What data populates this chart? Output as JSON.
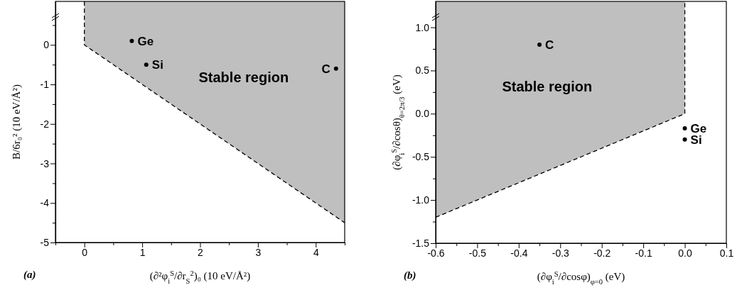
{
  "chart_data": [
    {
      "type": "scatter",
      "xlabel": "(∂²φ$_{i}$$^{S}$/∂r$_{S}$$^{2}$)₀ (10 eV/Å²)",
      "ylabel": "B/6r₀² (10 eV/Å²)",
      "xlim": [
        -0.5,
        4.5
      ],
      "ylim": [
        -5,
        1.1
      ],
      "xticks": [
        {
          "value": -0.5,
          "label": null
        },
        0,
        {
          "value": 0.5,
          "label": null
        },
        1,
        {
          "value": 1.5,
          "label": null
        },
        2,
        {
          "value": 2.5,
          "label": null
        },
        3,
        {
          "value": 3.5,
          "label": null
        },
        4,
        {
          "value": 4.5,
          "label": null
        }
      ],
      "yticks": [
        -5,
        {
          "value": -4.5,
          "label": null
        },
        -4,
        {
          "value": -3.5,
          "label": null
        },
        -3,
        {
          "value": -2.5,
          "label": null
        },
        -2,
        {
          "value": -1.5,
          "label": null
        },
        -1,
        {
          "value": -0.5,
          "label": null
        },
        0,
        {
          "value": 0.5,
          "label": null
        }
      ],
      "grid": false,
      "series": [
        {
          "type": "line",
          "x": [
            0,
            0,
            4.5
          ],
          "values": [
            1.1,
            0,
            -4.5
          ],
          "lower": [
            1.1,
            0,
            -4.5
          ],
          "upper": [
            1.1,
            1.1,
            1.1
          ],
          "color": "#000000",
          "line_style": "dashed",
          "marker": "none"
        },
        {
          "x": [
            0.82,
            1.07,
            4.35
          ],
          "values": [
            0.1,
            -0.5,
            -0.6
          ],
          "color": "#000000",
          "marker": "circle"
        }
      ],
      "annotations": [
        {
          "text": "Ge",
          "x": 0.82,
          "y": 0.1
        },
        {
          "text": "Si",
          "x": 1.07,
          "y": -0.5
        },
        {
          "text": "C",
          "x": 4.35,
          "y": -0.6
        },
        "Stable region",
        "(a)"
      ]
    },
    {
      "type": "scatter",
      "xlabel": "(∂φ$_{i}$$^{S}$/∂cosφ)$_{φ=0}$ (eV)",
      "ylabel": "(∂φ$_{i}$$^{S}$/∂cosθ)$_{θ=2π/3}$ (eV)",
      "xlim": [
        -0.6,
        0.1
      ],
      "ylim": [
        -1.5,
        1.3
      ],
      "xticks": [
        -0.6,
        {
          "value": -0.55,
          "label": null
        },
        -0.5,
        {
          "value": -0.45,
          "label": null
        },
        -0.4,
        {
          "value": -0.35,
          "label": null
        },
        -0.3,
        {
          "value": -0.25,
          "label": null
        },
        -0.2,
        {
          "value": -0.15,
          "label": null
        },
        -0.1,
        {
          "value": -0.05,
          "label": null
        },
        {
          "value": 0,
          "label": "0.0"
        },
        {
          "value": 0.05,
          "label": null
        },
        0.1
      ],
      "yticks": [
        -1.5,
        {
          "value": -1.25,
          "label": null
        },
        {
          "value": -1,
          "label": "-1.0"
        },
        {
          "value": -0.75,
          "label": null
        },
        -0.5,
        {
          "value": -0.25,
          "label": null
        },
        {
          "value": 0,
          "label": "0.0"
        },
        {
          "value": 0.25,
          "label": null
        },
        0.5,
        {
          "value": 0.75,
          "label": null
        },
        {
          "value": 1,
          "label": "1.0"
        }
      ],
      "grid": false,
      "series": [
        {
          "type": "line",
          "x": [
            -0.6,
            0,
            0
          ],
          "values": [
            -1.2,
            0,
            1.3
          ],
          "lower": [
            -1.2,
            0,
            1.3
          ],
          "upper": [
            1.3,
            1.3,
            1.3
          ],
          "color": "#000000",
          "line_style": "dashed",
          "marker": "none"
        },
        {
          "x": [
            -0.35,
            0,
            0
          ],
          "values": [
            0.8,
            -0.17,
            -0.3
          ],
          "color": "#000000",
          "marker": "circle"
        }
      ],
      "annotations": [
        {
          "text": "C",
          "x": -0.35,
          "y": 0.8
        },
        {
          "text": "Ge",
          "x": 0,
          "y": -0.17
        },
        {
          "text": "Si",
          "x": 0,
          "y": -0.3
        },
        "Stable region",
        "(b)"
      ]
    }
  ]
}
